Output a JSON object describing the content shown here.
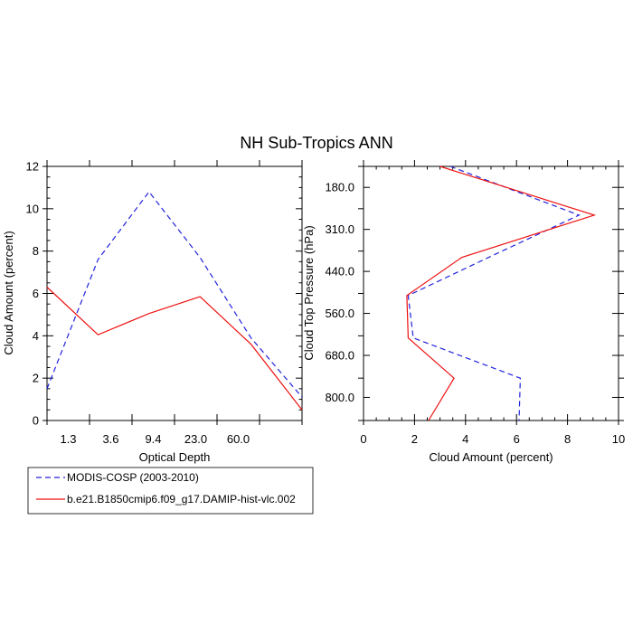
{
  "figure": {
    "title": "NH Sub-Tropics ANN"
  },
  "legend": {
    "placement": "bottom-left",
    "entries": [
      {
        "label": "MODIS-COSP (2003-2010)",
        "color": "#2222dd",
        "style": "dashed"
      },
      {
        "label": "b.e21.B1850cmip6.f09_g17.DAMIP-hist-vlc.002",
        "color": "#ee1111",
        "style": "solid"
      }
    ]
  },
  "chart_data": [
    {
      "type": "line",
      "xlabel": "Optical Depth",
      "ylabel": "Cloud Amount (percent)",
      "x_tick_labels": [
        "1.3",
        "3.6",
        "9.4",
        "23.0",
        "60.0"
      ],
      "y_ticks": [
        "0",
        "2",
        "4",
        "6",
        "8",
        "10",
        "12"
      ],
      "ylim": [
        0,
        12
      ],
      "x_positions": [
        0,
        1,
        2,
        3,
        4,
        5,
        6
      ],
      "xlim": [
        0,
        6
      ],
      "series": [
        {
          "name": "MODIS-COSP (2003-2010)",
          "color": "#2222dd",
          "style": "dashed",
          "values": [
            1.5,
            7.6,
            10.8,
            7.7,
            3.9,
            1.1
          ]
        },
        {
          "name": "b.e21.B1850cmip6.f09_g17.DAMIP-hist-vlc.002",
          "color": "#ee1111",
          "style": "solid",
          "values": [
            6.3,
            4.05,
            5.05,
            5.85,
            3.6,
            0.5
          ]
        }
      ],
      "series_x": [
        0,
        1,
        2,
        3,
        4,
        5
      ]
    },
    {
      "type": "line",
      "xlabel": "Cloud Amount (percent)",
      "ylabel": "Cloud Top Pressure (hPa)",
      "x_ticks": [
        "0",
        "2",
        "4",
        "6",
        "8",
        "10"
      ],
      "xlim": [
        0,
        10
      ],
      "y_tick_labels": [
        "180.0",
        "310.0",
        "440.0",
        "560.0",
        "680.0",
        "800.0"
      ],
      "ylim": [
        0,
        6
      ],
      "y_inverted": false,
      "series": [
        {
          "name": "MODIS-COSP (2003-2010)",
          "color": "#2222dd",
          "style": "dashed",
          "values": [
            3.4,
            8.45,
            4.9,
            1.75,
            1.95,
            6.15,
            6.1
          ]
        },
        {
          "name": "b.e21.B1850cmip6.f09_g17.DAMIP-hist-vlc.002",
          "color": "#ee1111",
          "style": "solid",
          "values": [
            3.0,
            9.05,
            3.85,
            1.7,
            1.75,
            3.55,
            2.55
          ]
        }
      ],
      "series_y": [
        6.0,
        4.85,
        3.85,
        2.95,
        1.95,
        1.0,
        0.0
      ]
    }
  ]
}
